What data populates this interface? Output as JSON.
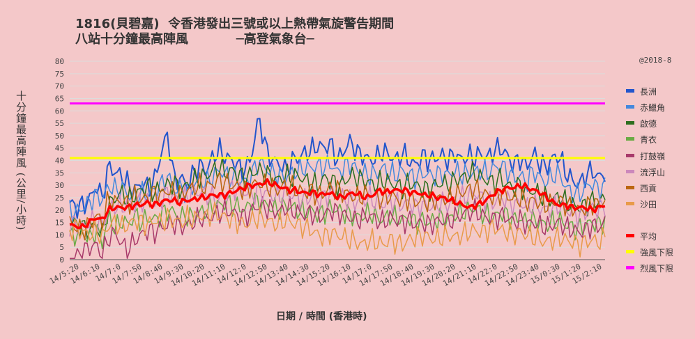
{
  "header": {
    "title_line1": "1816(貝碧嘉)  令香港發出三號或以上熱帶氣旋警告期間",
    "title_line2": "八站十分鐘最高陣風           ─高登氣象台─",
    "copyright": "@2018-8"
  },
  "chart_data": {
    "type": "line",
    "ylabel": "十分鐘最高陣風 (公里/小時)",
    "xlabel": "日期 / 時間 (香港時)",
    "ylim": [
      0,
      80
    ],
    "yticks": [
      0,
      5,
      10,
      15,
      20,
      25,
      30,
      35,
      40,
      45,
      50,
      55,
      60,
      65,
      70,
      75,
      80
    ],
    "xticks": [
      "14/5:20",
      "14/6:10",
      "14/7:0",
      "14/7:50",
      "14/8:40",
      "14/9:30",
      "14/10:20",
      "14/11:10",
      "14/12:0",
      "14/12:50",
      "14/13:40",
      "14/14:30",
      "14/15:20",
      "14/16:10",
      "14/17:0",
      "14/17:50",
      "14/18:40",
      "14/19:30",
      "14/20:20",
      "14/21:10",
      "14/22:0",
      "14/22:50",
      "14/23:40",
      "15/0:30",
      "15/1:20",
      "15/2:10"
    ],
    "legend_position": "right",
    "series": [
      {
        "name": "長洲",
        "color": "#2255cc",
        "width": 2,
        "anchors": [
          23,
          21,
          22,
          24,
          30,
          25,
          38,
          35,
          34,
          30,
          28,
          31,
          29,
          32,
          43,
          51,
          32,
          33,
          30,
          35,
          38,
          36,
          42,
          44,
          41,
          40,
          37,
          36,
          44,
          58,
          45,
          40,
          39,
          36,
          40,
          41,
          43,
          44,
          46,
          45,
          47,
          40,
          44,
          48,
          43,
          42,
          40,
          41,
          44,
          42,
          40,
          43,
          40,
          38,
          42,
          40,
          41,
          42,
          40,
          43,
          40,
          42,
          41,
          43,
          41,
          44,
          45,
          42,
          38,
          41,
          37,
          43,
          39,
          37,
          41,
          42,
          35,
          32,
          30,
          34,
          36,
          33,
          35
        ]
      },
      {
        "name": "赤鱲角",
        "color": "#4488dd",
        "width": 1.5,
        "anchors": [
          20,
          19,
          21,
          23,
          26,
          24,
          30,
          28,
          29,
          26,
          25,
          27,
          26,
          28,
          30,
          34,
          28,
          29,
          27,
          30,
          32,
          31,
          34,
          36,
          34,
          33,
          32,
          31,
          35,
          40,
          37,
          35,
          34,
          33,
          35,
          36,
          37,
          37,
          38,
          37,
          39,
          35,
          37,
          39,
          36,
          35,
          34,
          35,
          37,
          35,
          34,
          36,
          34,
          33,
          35,
          34,
          34,
          35,
          34,
          36,
          34,
          35,
          35,
          36,
          35,
          37,
          38,
          36,
          33,
          34,
          31,
          36,
          33,
          31,
          34,
          35,
          29,
          27,
          26,
          29,
          31,
          28,
          30
        ]
      },
      {
        "name": "啟德",
        "color": "#2e6e1e",
        "width": 1.5,
        "anchors": [
          16,
          14,
          13,
          12,
          14,
          10,
          22,
          25,
          27,
          24,
          26,
          28,
          30,
          27,
          29,
          30,
          31,
          28,
          30,
          32,
          33,
          34,
          36,
          37,
          35,
          36,
          34,
          33,
          35,
          36,
          35,
          33,
          32,
          34,
          33,
          34,
          32,
          31,
          30,
          33,
          32,
          30,
          31,
          34,
          33,
          32,
          31,
          30,
          32,
          31,
          30,
          29,
          31,
          30,
          29,
          28,
          30,
          31,
          30,
          32,
          33,
          34,
          35,
          33,
          32,
          31,
          33,
          30,
          29,
          30,
          27,
          28,
          26,
          25,
          24,
          26,
          23,
          22,
          21,
          22,
          24,
          23,
          25
        ]
      },
      {
        "name": "青衣",
        "color": "#6aaa44",
        "width": 1.5,
        "anchors": [
          9,
          10,
          11,
          8,
          12,
          7,
          18,
          12,
          16,
          14,
          18,
          15,
          17,
          16,
          18,
          20,
          19,
          17,
          18,
          17,
          19,
          20,
          21,
          22,
          23,
          22,
          21,
          20,
          24,
          23,
          22,
          21,
          20,
          22,
          21,
          20,
          19,
          20,
          18,
          19,
          21,
          20,
          19,
          18,
          17,
          18,
          19,
          17,
          16,
          18,
          17,
          16,
          17,
          15,
          16,
          15,
          16,
          17,
          16,
          18,
          19,
          20,
          21,
          19,
          18,
          17,
          19,
          18,
          16,
          17,
          15,
          16,
          15,
          14,
          15,
          16,
          14,
          13,
          12,
          14,
          15,
          14,
          16
        ]
      },
      {
        "name": "打鼓嶺",
        "color": "#a83a6a",
        "width": 1.5,
        "anchors": [
          1,
          1,
          3,
          5,
          6,
          2,
          9,
          11,
          6,
          4,
          8,
          10,
          12,
          11,
          13,
          14,
          15,
          13,
          14,
          15,
          17,
          16,
          18,
          19,
          20,
          19,
          18,
          17,
          20,
          22,
          21,
          20,
          19,
          21,
          20,
          19,
          18,
          19,
          17,
          18,
          20,
          19,
          18,
          17,
          16,
          17,
          18,
          16,
          15,
          17,
          16,
          15,
          16,
          14,
          15,
          14,
          15,
          16,
          15,
          17,
          18,
          19,
          20,
          18,
          17,
          16,
          18,
          17,
          15,
          16,
          14,
          15,
          14,
          13,
          14,
          15,
          13,
          12,
          11,
          12,
          14,
          13,
          15
        ]
      },
      {
        "name": "流浮山",
        "color": "#cc88bb",
        "width": 1.5,
        "anchors": [
          14,
          15,
          13,
          15,
          16,
          14,
          20,
          22,
          21,
          23,
          22,
          24,
          23,
          22,
          24,
          27,
          25,
          24,
          26,
          28,
          27,
          26,
          25,
          24,
          27,
          29,
          28,
          27,
          26,
          28,
          27,
          26,
          25,
          27,
          26,
          25,
          24,
          26,
          24,
          25,
          27,
          26,
          25,
          24,
          23,
          24,
          25,
          23,
          22,
          24,
          23,
          22,
          23,
          21,
          22,
          21,
          22,
          23,
          22,
          24,
          25,
          26,
          27,
          25,
          24,
          23,
          25,
          24,
          22,
          23,
          21,
          22,
          21,
          20,
          21,
          22,
          20,
          19,
          18,
          19,
          21,
          20,
          22
        ]
      },
      {
        "name": "西貢",
        "color": "#bb6611",
        "width": 1.5,
        "anchors": [
          15,
          13,
          12,
          14,
          18,
          15,
          25,
          23,
          24,
          22,
          26,
          24,
          25,
          27,
          26,
          28,
          27,
          26,
          28,
          29,
          30,
          29,
          31,
          32,
          31,
          30,
          29,
          28,
          30,
          31,
          30,
          29,
          28,
          30,
          29,
          28,
          27,
          28,
          26,
          27,
          29,
          28,
          27,
          26,
          25,
          26,
          27,
          25,
          24,
          26,
          25,
          24,
          25,
          23,
          24,
          23,
          24,
          25,
          24,
          26,
          27,
          28,
          29,
          27,
          26,
          25,
          27,
          26,
          24,
          25,
          23,
          24,
          23,
          22,
          23,
          24,
          22,
          21,
          20,
          21,
          23,
          22,
          24
        ]
      },
      {
        "name": "沙田",
        "color": "#e89a4a",
        "width": 1.5,
        "anchors": [
          12,
          13,
          11,
          10,
          12,
          9,
          14,
          15,
          13,
          14,
          16,
          15,
          14,
          16,
          15,
          17,
          16,
          15,
          17,
          16,
          18,
          17,
          19,
          18,
          17,
          16,
          15,
          14,
          16,
          17,
          16,
          15,
          14,
          16,
          15,
          14,
          13,
          12,
          10,
          9,
          11,
          10,
          9,
          8,
          7,
          6,
          8,
          7,
          6,
          8,
          7,
          6,
          8,
          9,
          10,
          9,
          8,
          9,
          10,
          9,
          10,
          11,
          12,
          11,
          12,
          13,
          12,
          11,
          10,
          11,
          10,
          9,
          8,
          7,
          8,
          9,
          8,
          7,
          6,
          7,
          8,
          7,
          9
        ]
      },
      {
        "name": "平均",
        "color": "#ff0000",
        "width": 3.5,
        "anchors": [
          14,
          13.5,
          13,
          15,
          17,
          16,
          20,
          21,
          21,
          21,
          22,
          22,
          23,
          22,
          23,
          24,
          24,
          23,
          24,
          24,
          25,
          25,
          26,
          26,
          26,
          27,
          28,
          29,
          30,
          30,
          31,
          31,
          30,
          29,
          28,
          28,
          27,
          27,
          27,
          26,
          27,
          26,
          25,
          26,
          27,
          26,
          25,
          26,
          28,
          27,
          28,
          28,
          28,
          27,
          27,
          26,
          26,
          25,
          25,
          24,
          23,
          22,
          21,
          22,
          23,
          25,
          27,
          28,
          29,
          29,
          30,
          29,
          28,
          27,
          25,
          23,
          22,
          22,
          21,
          21,
          21,
          20,
          21,
          22
        ]
      },
      {
        "name": "強風下限",
        "color": "#ffff00",
        "width": 3,
        "threshold": 41
      },
      {
        "name": "烈風下限",
        "color": "#ff00ff",
        "width": 3,
        "threshold": 63
      }
    ]
  }
}
